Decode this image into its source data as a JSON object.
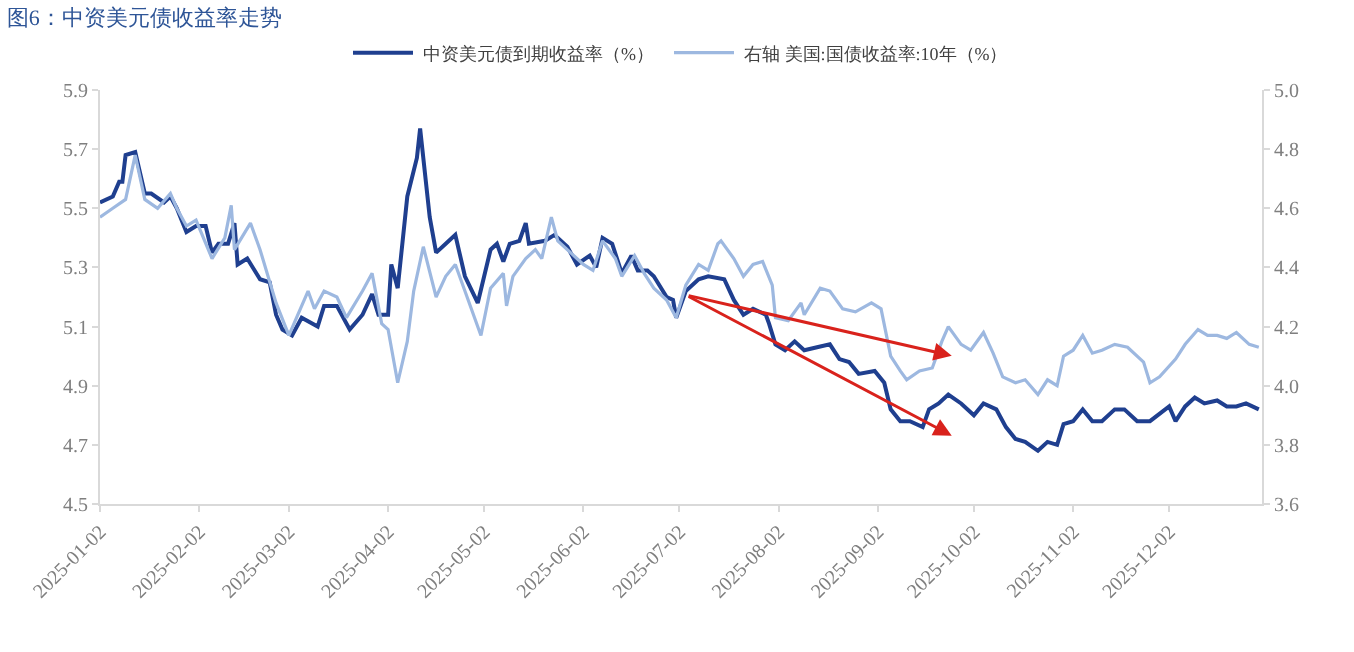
{
  "chart_data": {
    "type": "line",
    "title": "图6：中资美元债收益率走势",
    "series": [
      {
        "name": "中资美元债到期收益率（%）",
        "color": "#1f3f8f",
        "x": [
          "2025-01-02",
          "2025-01-06",
          "2025-01-08",
          "2025-01-09",
          "2025-01-10",
          "2025-01-13",
          "2025-01-16",
          "2025-01-18",
          "2025-01-22",
          "2025-01-24",
          "2025-01-26",
          "2025-01-29",
          "2025-02-01",
          "2025-02-04",
          "2025-02-06",
          "2025-02-08",
          "2025-02-11",
          "2025-02-13",
          "2025-02-14",
          "2025-02-17",
          "2025-02-21",
          "2025-02-24",
          "2025-02-26",
          "2025-02-28",
          "2025-03-03",
          "2025-03-06",
          "2025-03-11",
          "2025-03-13",
          "2025-03-17",
          "2025-03-21",
          "2025-03-25",
          "2025-03-28",
          "2025-03-30",
          "2025-04-02",
          "2025-04-03",
          "2025-04-05",
          "2025-04-08",
          "2025-04-11",
          "2025-04-12",
          "2025-04-15",
          "2025-04-17",
          "2025-04-20",
          "2025-04-23",
          "2025-04-26",
          "2025-04-30",
          "2025-05-04",
          "2025-05-06",
          "2025-05-08",
          "2025-05-10",
          "2025-05-13",
          "2025-05-15",
          "2025-05-16",
          "2025-05-21",
          "2025-05-24",
          "2025-05-28",
          "2025-05-31",
          "2025-06-04",
          "2025-06-06",
          "2025-06-08",
          "2025-06-11",
          "2025-06-14",
          "2025-06-17",
          "2025-06-19",
          "2025-06-22",
          "2025-06-24",
          "2025-06-28",
          "2025-06-30",
          "2025-07-01",
          "2025-07-04",
          "2025-07-08",
          "2025-07-11",
          "2025-07-16",
          "2025-07-19",
          "2025-07-22",
          "2025-07-25",
          "2025-07-29",
          "2025-07-30",
          "2025-08-01",
          "2025-08-04",
          "2025-08-07",
          "2025-08-10",
          "2025-08-14",
          "2025-08-18",
          "2025-08-21",
          "2025-08-24",
          "2025-08-27",
          "2025-09-01",
          "2025-09-04",
          "2025-09-06",
          "2025-09-09",
          "2025-09-12",
          "2025-09-16",
          "2025-09-18",
          "2025-09-21",
          "2025-09-24",
          "2025-09-28",
          "2025-10-02",
          "2025-10-05",
          "2025-10-09",
          "2025-10-12",
          "2025-10-15",
          "2025-10-18",
          "2025-10-22",
          "2025-10-25",
          "2025-10-28",
          "2025-10-30",
          "2025-11-02",
          "2025-11-05",
          "2025-11-08",
          "2025-11-11",
          "2025-11-15",
          "2025-11-18",
          "2025-11-22",
          "2025-11-26",
          "2025-12-02",
          "2025-12-04",
          "2025-12-07",
          "2025-12-10",
          "2025-12-13",
          "2025-12-17",
          "2025-12-20",
          "2025-12-23",
          "2025-12-26",
          "2025-12-30"
        ],
        "values": [
          5.52,
          5.54,
          5.59,
          5.59,
          5.68,
          5.69,
          5.55,
          5.55,
          5.52,
          5.54,
          5.5,
          5.42,
          5.44,
          5.44,
          5.35,
          5.38,
          5.38,
          5.45,
          5.31,
          5.33,
          5.26,
          5.25,
          5.14,
          5.09,
          5.07,
          5.13,
          5.1,
          5.17,
          5.17,
          5.09,
          5.14,
          5.21,
          5.14,
          5.14,
          5.31,
          5.23,
          5.54,
          5.67,
          5.77,
          5.47,
          5.35,
          5.38,
          5.41,
          5.27,
          5.18,
          5.36,
          5.38,
          5.32,
          5.38,
          5.39,
          5.45,
          5.38,
          5.39,
          5.41,
          5.37,
          5.31,
          5.34,
          5.3,
          5.4,
          5.38,
          5.28,
          5.34,
          5.29,
          5.29,
          5.27,
          5.2,
          5.19,
          5.13,
          5.22,
          5.26,
          5.27,
          5.26,
          5.19,
          5.14,
          5.16,
          5.14,
          5.11,
          5.04,
          5.02,
          5.05,
          5.02,
          5.03,
          5.04,
          4.99,
          4.98,
          4.94,
          4.95,
          4.91,
          4.82,
          4.78,
          4.78,
          4.76,
          4.82,
          4.84,
          4.87,
          4.84,
          4.8,
          4.84,
          4.82,
          4.76,
          4.72,
          4.71,
          4.68,
          4.71,
          4.7,
          4.77,
          4.78,
          4.82,
          4.78,
          4.78,
          4.82,
          4.82,
          4.78,
          4.78,
          4.83,
          4.78,
          4.83,
          4.86,
          4.84,
          4.85,
          4.83,
          4.83,
          4.84,
          4.82
        ]
      },
      {
        "name": "右轴 美国:国债收益率:10年（%）",
        "color": "#9db8e0",
        "axis": "y2",
        "x": [
          "2025-01-02",
          "2025-01-06",
          "2025-01-10",
          "2025-01-13",
          "2025-01-16",
          "2025-01-20",
          "2025-01-24",
          "2025-01-26",
          "2025-01-29",
          "2025-02-01",
          "2025-02-06",
          "2025-02-10",
          "2025-02-12",
          "2025-02-13",
          "2025-02-18",
          "2025-02-21",
          "2025-02-26",
          "2025-03-02",
          "2025-03-08",
          "2025-03-10",
          "2025-03-13",
          "2025-03-17",
          "2025-03-20",
          "2025-03-25",
          "2025-03-28",
          "2025-03-31",
          "2025-04-02",
          "2025-04-05",
          "2025-04-08",
          "2025-04-10",
          "2025-04-13",
          "2025-04-17",
          "2025-04-20",
          "2025-04-23",
          "2025-04-26",
          "2025-05-01",
          "2025-05-04",
          "2025-05-08",
          "2025-05-09",
          "2025-05-11",
          "2025-05-15",
          "2025-05-18",
          "2025-05-20",
          "2025-05-23",
          "2025-05-25",
          "2025-05-29",
          "2025-06-02",
          "2025-06-05",
          "2025-06-08",
          "2025-06-12",
          "2025-06-14",
          "2025-06-18",
          "2025-06-21",
          "2025-06-24",
          "2025-06-28",
          "2025-07-01",
          "2025-07-04",
          "2025-07-08",
          "2025-07-11",
          "2025-07-14",
          "2025-07-15",
          "2025-07-19",
          "2025-07-22",
          "2025-07-25",
          "2025-07-28",
          "2025-07-31",
          "2025-08-01",
          "2025-08-05",
          "2025-08-09",
          "2025-08-10",
          "2025-08-15",
          "2025-08-18",
          "2025-08-22",
          "2025-08-26",
          "2025-08-31",
          "2025-09-03",
          "2025-09-06",
          "2025-09-09",
          "2025-09-11",
          "2025-09-15",
          "2025-09-19",
          "2025-09-22",
          "2025-09-24",
          "2025-09-28",
          "2025-10-01",
          "2025-10-05",
          "2025-10-08",
          "2025-10-11",
          "2025-10-15",
          "2025-10-18",
          "2025-10-22",
          "2025-10-25",
          "2025-10-28",
          "2025-10-30",
          "2025-11-02",
          "2025-11-05",
          "2025-11-08",
          "2025-11-11",
          "2025-11-15",
          "2025-11-19",
          "2025-11-24",
          "2025-11-26",
          "2025-11-29",
          "2025-12-04",
          "2025-12-07",
          "2025-12-11",
          "2025-12-14",
          "2025-12-17",
          "2025-12-20",
          "2025-12-23",
          "2025-12-27",
          "2025-12-30"
        ],
        "values": [
          4.57,
          4.6,
          4.63,
          4.78,
          4.63,
          4.6,
          4.65,
          4.6,
          4.54,
          4.56,
          4.43,
          4.5,
          4.61,
          4.46,
          4.55,
          4.46,
          4.28,
          4.17,
          4.32,
          4.26,
          4.32,
          4.3,
          4.23,
          4.32,
          4.38,
          4.21,
          4.19,
          4.01,
          4.15,
          4.32,
          4.47,
          4.3,
          4.37,
          4.41,
          4.32,
          4.17,
          4.33,
          4.38,
          4.27,
          4.37,
          4.43,
          4.46,
          4.43,
          4.57,
          4.49,
          4.45,
          4.41,
          4.39,
          4.49,
          4.43,
          4.37,
          4.44,
          4.38,
          4.33,
          4.29,
          4.23,
          4.34,
          4.41,
          4.39,
          4.48,
          4.49,
          4.43,
          4.37,
          4.41,
          4.42,
          4.34,
          4.23,
          4.22,
          4.28,
          4.24,
          4.33,
          4.32,
          4.26,
          4.25,
          4.28,
          4.26,
          4.1,
          4.05,
          4.02,
          4.05,
          4.06,
          4.15,
          4.2,
          4.14,
          4.12,
          4.18,
          4.11,
          4.03,
          4.01,
          4.02,
          3.97,
          4.02,
          4.0,
          4.1,
          4.12,
          4.17,
          4.11,
          4.12,
          4.14,
          4.13,
          4.08,
          4.01,
          4.03,
          4.09,
          4.14,
          4.19,
          4.17,
          4.17,
          4.16,
          4.18,
          4.14,
          4.13
        ]
      }
    ],
    "xlim": [
      "2025-01-02",
      "2025-12-31"
    ],
    "xticks": [
      "2025-01-02",
      "2025-02-02",
      "2025-03-02",
      "2025-04-02",
      "2025-05-02",
      "2025-06-02",
      "2025-07-02",
      "2025-08-02",
      "2025-09-02",
      "2025-10-02",
      "2025-11-02",
      "2025-12-02"
    ],
    "ylim": [
      4.5,
      5.9
    ],
    "yticks": [
      4.5,
      4.7,
      4.9,
      5.1,
      5.3,
      5.5,
      5.7,
      5.9
    ],
    "y2lim": [
      3.6,
      5.0
    ],
    "y2ticks": [
      3.6,
      3.8,
      {
        "value": 4.0,
        "label": "4.0"
      },
      4.2,
      4.4,
      4.6,
      4.8,
      {
        "value": 5.0,
        "label": "5.0"
      }
    ],
    "legend": "top",
    "line_style": "solid",
    "marker": "none"
  }
}
